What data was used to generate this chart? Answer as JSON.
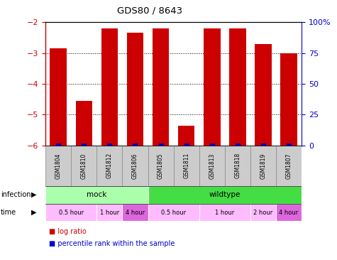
{
  "title": "GDS80 / 8643",
  "samples": [
    "GSM1804",
    "GSM1810",
    "GSM1812",
    "GSM1806",
    "GSM1805",
    "GSM1811",
    "GSM1813",
    "GSM1818",
    "GSM1819",
    "GSM1807"
  ],
  "log_ratios": [
    -2.85,
    -4.55,
    -2.2,
    -2.35,
    -2.2,
    -5.35,
    -2.2,
    -2.2,
    -2.7,
    -3.0
  ],
  "ylim": [
    -6,
    -2
  ],
  "yticks": [
    -6,
    -5,
    -4,
    -3,
    -2
  ],
  "right_ytick_labels": [
    "0",
    "25",
    "50",
    "75",
    "100%"
  ],
  "bar_color": "#cc0000",
  "percentile_color": "#0000cc",
  "infection_groups": [
    {
      "label": "mock",
      "start": 0,
      "end": 4,
      "color": "#aaffaa"
    },
    {
      "label": "wildtype",
      "start": 4,
      "end": 10,
      "color": "#44dd44"
    }
  ],
  "time_groups": [
    {
      "label": "0.5 hour",
      "start": 0,
      "end": 2,
      "color": "#ffbbff"
    },
    {
      "label": "1 hour",
      "start": 2,
      "end": 3,
      "color": "#ffbbff"
    },
    {
      "label": "4 hour",
      "start": 3,
      "end": 4,
      "color": "#dd66dd"
    },
    {
      "label": "0.5 hour",
      "start": 4,
      "end": 6,
      "color": "#ffbbff"
    },
    {
      "label": "1 hour",
      "start": 6,
      "end": 8,
      "color": "#ffbbff"
    },
    {
      "label": "2 hour",
      "start": 8,
      "end": 9,
      "color": "#ffbbff"
    },
    {
      "label": "4 hour",
      "start": 9,
      "end": 10,
      "color": "#dd66dd"
    }
  ],
  "left_color": "#cc0000",
  "right_color": "#0000cc",
  "grid_color": "#000000",
  "sample_bg": "#cccccc",
  "sample_border": "#888888"
}
